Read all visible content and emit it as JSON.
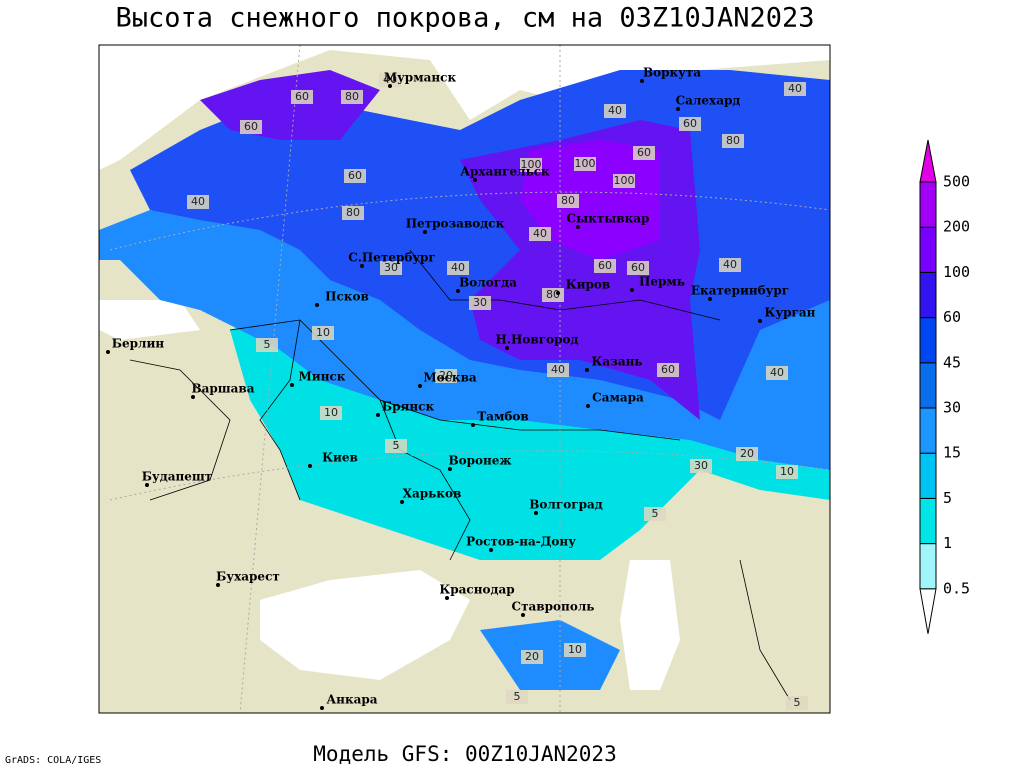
{
  "title": "Высота снежного покрова, см на 03Z10JAN2023",
  "footer": "Модель GFS: 00Z10JAN2023",
  "credit": "GrADS: COLA/IGES",
  "cities": [
    "Мурманск",
    "Воркута",
    "Салехард",
    "Архангельск",
    "Сыктывкар",
    "Петрозаводск",
    "С.Петербург",
    "Вологда",
    "Киров",
    "Пермь",
    "Екатеринбург",
    "Курган",
    "Псков",
    "Берлин",
    "Н.Новгород",
    "Москва",
    "Казань",
    "Минск",
    "Варшава",
    "Брянск",
    "Тамбов",
    "Самара",
    "Киев",
    "Воронеж",
    "Будапешт",
    "Харьков",
    "Волгоград",
    "Ростов-на-Дону",
    "Бухарест",
    "Краснодар",
    "Ставрополь",
    "Анкара"
  ],
  "contour_labels": [
    60,
    80,
    60,
    40,
    40,
    60,
    80,
    100,
    100,
    100,
    80,
    60,
    40,
    40,
    40,
    60,
    30,
    40,
    60,
    80,
    60,
    40,
    10,
    30,
    5,
    20,
    10,
    5,
    40,
    60,
    30,
    20,
    10,
    5,
    5,
    20,
    10,
    5,
    40,
    80
  ],
  "colorbar": {
    "levels": [
      0.5,
      1,
      5,
      15,
      30,
      45,
      60,
      100,
      200,
      500
    ],
    "colors": [
      "#ffffff",
      "#9ff5fa",
      "#00e6e6",
      "#00c3f5",
      "#1e96ff",
      "#0a6eeb",
      "#0046f0",
      "#3214f0",
      "#7800ff",
      "#a000f5",
      "#e100e6"
    ]
  }
}
